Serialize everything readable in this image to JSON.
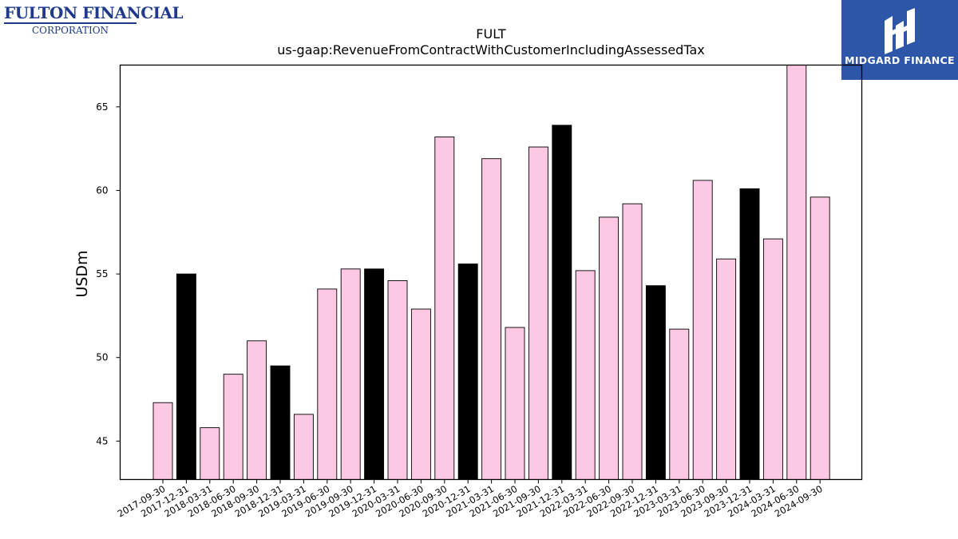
{
  "logos": {
    "left": {
      "name": "FULTON FINANCIAL",
      "sub": "CORPORATION",
      "color": "#1f3a8a"
    },
    "right": {
      "brand": "MIDGARD FINANCE",
      "icon": "midgard-mark-icon",
      "bg": "#2d56a8"
    }
  },
  "chart_data": {
    "type": "bar",
    "title": "FULT",
    "subtitle": "us-gaap:RevenueFromContractWithCustomerIncludingAssessedTax",
    "xlabel": "",
    "ylabel": "USDm",
    "ylim": [
      42.7,
      67.5
    ],
    "yticks": [
      45,
      50,
      55,
      60,
      65
    ],
    "grid": false,
    "colors": {
      "quarter": "#fcc8e3",
      "year_end": "#000000",
      "edge": "#000000"
    },
    "categories": [
      "2017-09-30",
      "2017-12-31",
      "2018-03-31",
      "2018-06-30",
      "2018-09-30",
      "2018-12-31",
      "2019-03-31",
      "2019-06-30",
      "2019-09-30",
      "2019-12-31",
      "2020-03-31",
      "2020-06-30",
      "2020-09-30",
      "2020-12-31",
      "2021-03-31",
      "2021-06-30",
      "2021-09-30",
      "2021-12-31",
      "2022-03-31",
      "2022-06-30",
      "2022-09-30",
      "2022-12-31",
      "2023-03-31",
      "2023-06-30",
      "2023-09-30",
      "2023-12-31",
      "2024-03-31",
      "2024-06-30",
      "2024-09-30"
    ],
    "values": [
      47.3,
      55.0,
      45.8,
      49.0,
      51.0,
      49.5,
      46.6,
      54.1,
      55.3,
      55.3,
      54.6,
      52.9,
      63.2,
      55.6,
      61.9,
      51.8,
      62.6,
      63.9,
      55.2,
      58.4,
      59.2,
      54.3,
      51.7,
      60.6,
      55.9,
      60.1,
      57.1,
      67.5,
      59.6
    ],
    "highlight": [
      false,
      true,
      false,
      false,
      false,
      true,
      false,
      false,
      false,
      true,
      false,
      false,
      false,
      true,
      false,
      false,
      false,
      true,
      false,
      false,
      false,
      true,
      false,
      false,
      false,
      true,
      false,
      false,
      false
    ]
  }
}
